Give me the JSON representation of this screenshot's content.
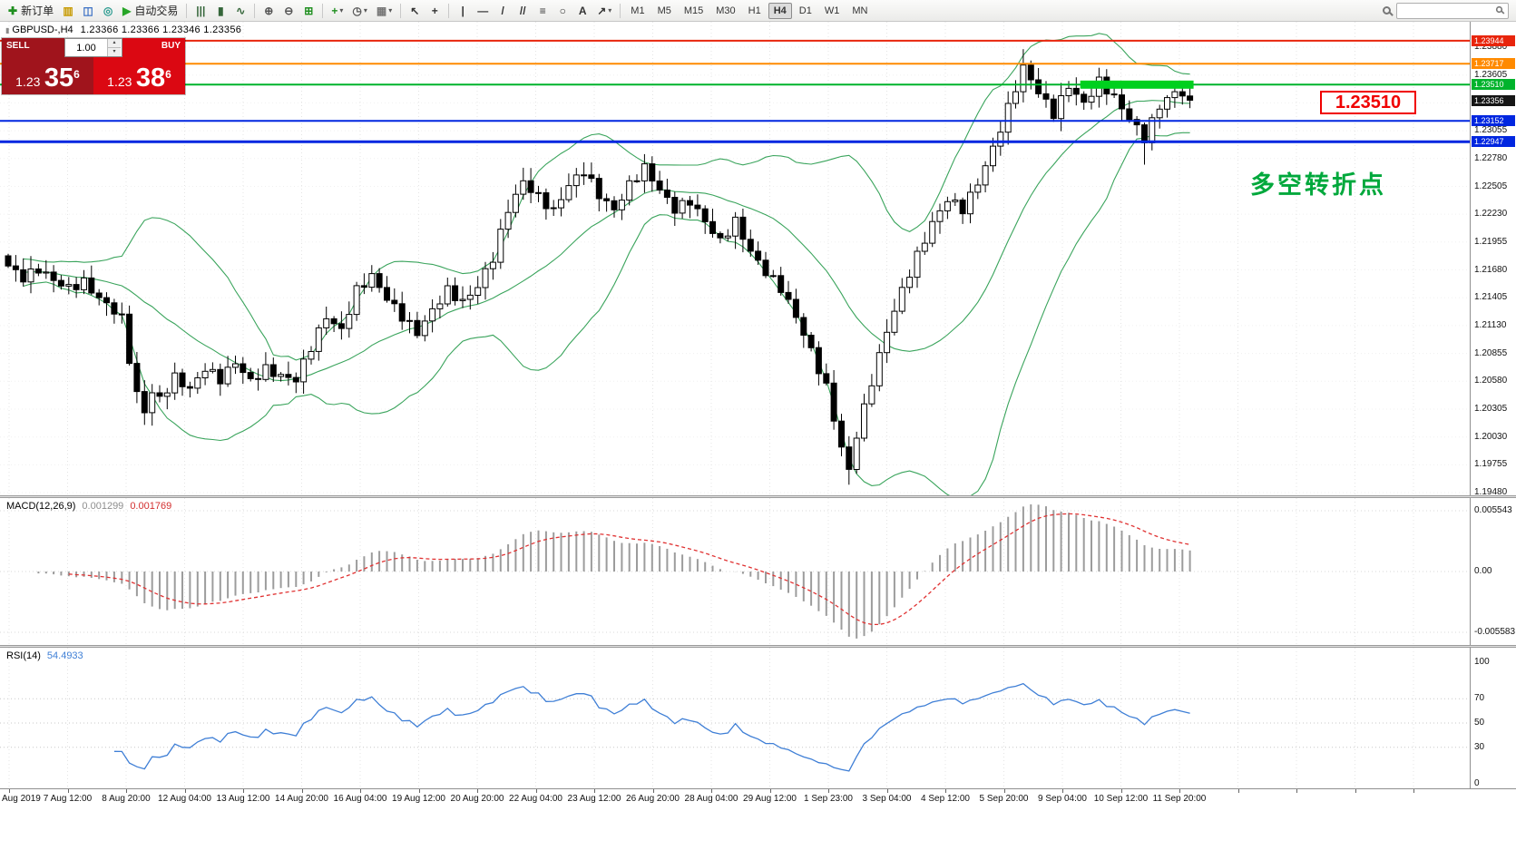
{
  "toolbar": {
    "left_buttons": [
      {
        "name": "new-order",
        "glyph": "✚",
        "color": "#1f8f1f",
        "label": "新订单"
      },
      {
        "name": "charts",
        "glyph": "▥",
        "color": "#c79a00"
      },
      {
        "name": "profiles",
        "glyph": "◫",
        "color": "#3a6fc4"
      },
      {
        "name": "market-watch",
        "glyph": "◎",
        "color": "#2a9a8f"
      },
      {
        "name": "autotrading",
        "glyph": "▶",
        "color": "#27a527",
        "label": "自动交易"
      }
    ],
    "chart_buttons": [
      {
        "name": "bar-chart",
        "glyph": "|||",
        "color": "#35663a"
      },
      {
        "name": "candlestick-chart",
        "glyph": "▮",
        "color": "#35663a"
      },
      {
        "name": "line-chart",
        "glyph": "∿",
        "color": "#35663a"
      }
    ],
    "zoom_buttons": [
      {
        "name": "zoom-in",
        "glyph": "⊕",
        "color": "#555555"
      },
      {
        "name": "zoom-out",
        "glyph": "⊖",
        "color": "#555555"
      },
      {
        "name": "tile-windows",
        "glyph": "⊞",
        "color": "#1f8f1f"
      }
    ],
    "object_buttons": [
      {
        "name": "indicators",
        "glyph": "+",
        "color": "#1f8f1f",
        "caret": true
      },
      {
        "name": "periods",
        "glyph": "◷",
        "color": "#555555",
        "caret": true
      },
      {
        "name": "templates",
        "glyph": "▦",
        "color": "#777777",
        "caret": true
      }
    ],
    "cursor_buttons": [
      {
        "name": "cursor",
        "glyph": "↖",
        "color": "#333333"
      },
      {
        "name": "crosshair",
        "glyph": "+",
        "color": "#333333"
      }
    ],
    "draw_buttons": [
      {
        "name": "vertical-line",
        "glyph": "|",
        "color": "#333333"
      },
      {
        "name": "horizontal-line",
        "glyph": "—",
        "color": "#333333"
      },
      {
        "name": "trendline",
        "glyph": "/",
        "color": "#333333"
      },
      {
        "name": "equidistant-channel",
        "glyph": "//",
        "color": "#333333"
      },
      {
        "name": "fibonacci",
        "glyph": "≡",
        "color": "#333333"
      },
      {
        "name": "shapes",
        "glyph": "○",
        "color": "#333333"
      },
      {
        "name": "text",
        "glyph": "A",
        "color": "#333333"
      },
      {
        "name": "arrows",
        "glyph": "↗",
        "color": "#333333",
        "caret": true
      }
    ],
    "timeframes": [
      {
        "label": "M1"
      },
      {
        "label": "M5"
      },
      {
        "label": "M15"
      },
      {
        "label": "M30"
      },
      {
        "label": "H1"
      },
      {
        "label": "H4",
        "active": true
      },
      {
        "label": "D1"
      },
      {
        "label": "W1"
      },
      {
        "label": "MN"
      }
    ],
    "search": {
      "value": "",
      "placeholder": "",
      "icon": "magnifier"
    }
  },
  "chart": {
    "title": {
      "symbol": "GBPUSD-,H4",
      "ohlc": "1.23366 1.23366 1.23346 1.23356"
    },
    "one_click": {
      "sell_label": "SELL",
      "buy_label": "BUY",
      "volume": "1.00",
      "sell_price": {
        "prefix": "1.23",
        "big": "35",
        "sup": "6"
      },
      "buy_price": {
        "prefix": "1.23",
        "big": "38",
        "sup": "6"
      }
    },
    "price_tag": "1.23510",
    "note": "多空转折点",
    "axis_labels": [
      "1.23880",
      "1.23605",
      "1.23330",
      "1.23055",
      "1.22780",
      "1.22505",
      "1.22230",
      "1.21955",
      "1.21680",
      "1.21405",
      "1.21130",
      "1.20855",
      "1.20580",
      "1.20305",
      "1.20030",
      "1.19755",
      "1.19480"
    ],
    "badges": [
      {
        "label": "1.23944",
        "value": 1.23944,
        "color": "#e8250c"
      },
      {
        "label": "1.23717",
        "value": 1.23717,
        "color": "#ff8a00"
      },
      {
        "label": "1.23510",
        "value": 1.2351,
        "color": "#00b32c"
      },
      {
        "label": "1.23356",
        "value": 1.23356,
        "color": "#151515"
      },
      {
        "label": "1.23152",
        "value": 1.23152,
        "color": "#0026e0"
      },
      {
        "label": "1.22947",
        "value": 1.22947,
        "color": "#0026e0"
      }
    ]
  },
  "indicators": {
    "macd": {
      "name": "MACD(12,26,9)",
      "value1": "0.001299",
      "value2": "0.001769",
      "axis": [
        "0.005543",
        "0.00",
        "-0.005583"
      ]
    },
    "rsi": {
      "name": "RSI(14)",
      "value": "54.4933",
      "axis": [
        "100",
        "70",
        "50",
        "30",
        "0"
      ],
      "levels": [
        70,
        50,
        30
      ]
    }
  },
  "time_labels": [
    "Aug 2019",
    "7 Aug 12:00",
    "8 Aug 20:00",
    "12 Aug 04:00",
    "13 Aug 12:00",
    "14 Aug 20:00",
    "16 Aug 04:00",
    "19 Aug 12:00",
    "20 Aug 20:00",
    "22 Aug 04:00",
    "23 Aug 12:00",
    "26 Aug 20:00",
    "28 Aug 04:00",
    "29 Aug 12:00",
    "1 Sep 23:00",
    "3 Sep 04:00",
    "4 Sep 12:00",
    "5 Sep 20:00",
    "9 Sep 04:00",
    "10 Sep 12:00",
    "11 Sep 20:00"
  ],
  "chart_data": {
    "type": "candlestick",
    "symbol": "GBPUSD-",
    "timeframe": "H4",
    "ylim": [
      1.1948,
      1.23944
    ],
    "grid_top": 1.2388,
    "grid_step": 0.00275,
    "candle_count": 157,
    "last_close": 1.23356,
    "close_waypoints": [
      [
        0,
        1.2172
      ],
      [
        2,
        1.216
      ],
      [
        4,
        1.2169
      ],
      [
        6,
        1.2158
      ],
      [
        8,
        1.215
      ],
      [
        10,
        1.2156
      ],
      [
        12,
        1.214
      ],
      [
        14,
        1.2128
      ],
      [
        15,
        1.212
      ],
      [
        16,
        1.208
      ],
      [
        17,
        1.2045
      ],
      [
        18,
        1.2028
      ],
      [
        19,
        1.2048
      ],
      [
        20,
        1.204
      ],
      [
        22,
        1.2062
      ],
      [
        24,
        1.205
      ],
      [
        26,
        1.2071
      ],
      [
        28,
        1.206
      ],
      [
        30,
        1.2077
      ],
      [
        32,
        1.2058
      ],
      [
        34,
        1.207
      ],
      [
        36,
        1.2063
      ],
      [
        38,
        1.206
      ],
      [
        40,
        1.2092
      ],
      [
        42,
        1.2122
      ],
      [
        44,
        1.2108
      ],
      [
        46,
        1.2148
      ],
      [
        48,
        1.2162
      ],
      [
        50,
        1.214
      ],
      [
        52,
        1.2122
      ],
      [
        54,
        1.2106
      ],
      [
        56,
        1.2128
      ],
      [
        58,
        1.2148
      ],
      [
        60,
        1.2136
      ],
      [
        62,
        1.2152
      ],
      [
        64,
        1.218
      ],
      [
        66,
        1.2228
      ],
      [
        68,
        1.2255
      ],
      [
        70,
        1.224
      ],
      [
        72,
        1.2226
      ],
      [
        74,
        1.2252
      ],
      [
        76,
        1.2266
      ],
      [
        78,
        1.2242
      ],
      [
        80,
        1.2227
      ],
      [
        82,
        1.2252
      ],
      [
        84,
        1.2269
      ],
      [
        86,
        1.2247
      ],
      [
        88,
        1.2228
      ],
      [
        90,
        1.2236
      ],
      [
        92,
        1.2216
      ],
      [
        94,
        1.2196
      ],
      [
        96,
        1.2216
      ],
      [
        98,
        1.2186
      ],
      [
        100,
        1.2166
      ],
      [
        102,
        1.215
      ],
      [
        104,
        1.2122
      ],
      [
        106,
        1.2088
      ],
      [
        108,
        1.2052
      ],
      [
        110,
        1.1992
      ],
      [
        111,
        1.197
      ],
      [
        112,
        1.2005
      ],
      [
        114,
        1.2058
      ],
      [
        116,
        1.2108
      ],
      [
        118,
        1.2148
      ],
      [
        120,
        1.2182
      ],
      [
        122,
        1.2214
      ],
      [
        124,
        1.2238
      ],
      [
        126,
        1.2228
      ],
      [
        128,
        1.2254
      ],
      [
        130,
        1.2288
      ],
      [
        132,
        1.2328
      ],
      [
        134,
        1.2368
      ],
      [
        136,
        1.2344
      ],
      [
        138,
        1.2322
      ],
      [
        140,
        1.235
      ],
      [
        142,
        1.2332
      ],
      [
        144,
        1.2354
      ],
      [
        146,
        1.2338
      ],
      [
        148,
        1.2318
      ],
      [
        150,
        1.2298
      ],
      [
        152,
        1.233
      ],
      [
        154,
        1.2344
      ],
      [
        156,
        1.23356
      ]
    ],
    "special_candles": {
      "18": {
        "low": 1.2015
      },
      "111": {
        "low": 1.1956
      },
      "134": {
        "high": 1.2386
      },
      "150": {
        "low": 1.2272
      }
    },
    "levels": [
      {
        "price": 1.23944,
        "color": "#e8250c",
        "width": 2
      },
      {
        "price": 1.23717,
        "color": "#ff8a00",
        "width": 2
      },
      {
        "price": 1.2351,
        "color": "#00b32c",
        "width": 2,
        "segment": {
          "from_candle": 142,
          "to_candle": 156,
          "thickness": 9,
          "color": "#00d01e"
        }
      },
      {
        "price": 1.23152,
        "color": "#0026e0",
        "width": 2
      },
      {
        "price": 1.22947,
        "color": "#0026e0",
        "width": 3
      }
    ],
    "bollinger": {
      "period": 20,
      "deviation": 2,
      "color": "#3aa45c"
    },
    "candle_up_fill": "#ffffff",
    "candle_down_fill": "#000000",
    "candle_outline": "#000000",
    "macd_colors": {
      "histogram": "#9c9c9c",
      "signal": "#e03232"
    },
    "rsi_color": "#3f7fd6"
  }
}
